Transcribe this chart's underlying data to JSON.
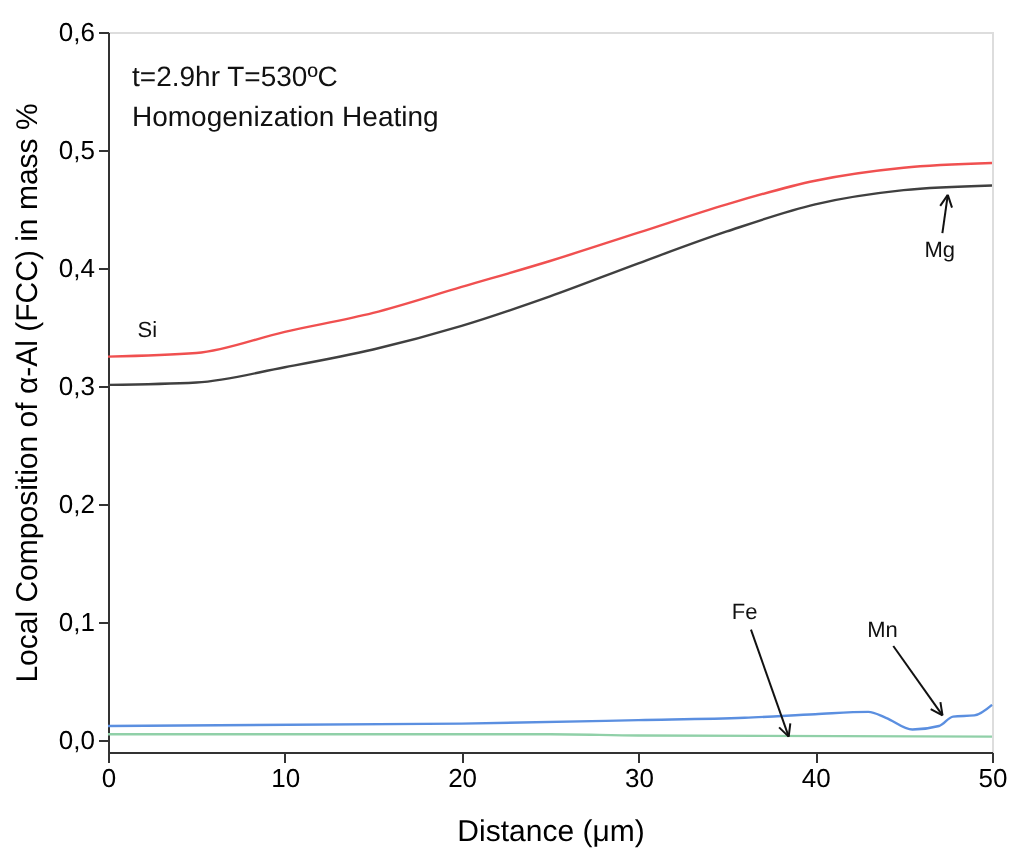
{
  "chart_data": {
    "type": "line",
    "xlabel": "Distance (μm)",
    "ylabel": "Local Composition of α-Al (FCC) in mass %",
    "xlim": [
      0,
      50
    ],
    "xticks": [
      0,
      10,
      20,
      30,
      40,
      50
    ],
    "ylim": [
      -0.01,
      0.6
    ],
    "yticks": [
      {
        "value": 0,
        "label": "0,0"
      },
      {
        "value": 0.1,
        "label": "0,1"
      },
      {
        "value": 0.2,
        "label": "0,2"
      },
      {
        "value": 0.3,
        "label": "0,3"
      },
      {
        "value": 0.4,
        "label": "0,4"
      },
      {
        "value": 0.5,
        "label": "0,5"
      },
      {
        "value": 0.6,
        "label": "0,6"
      }
    ],
    "grid": false,
    "legend": false,
    "line_style": "solid",
    "marker": "none",
    "series": [
      {
        "color": "#f05050",
        "x": [
          0,
          5,
          10,
          15,
          20,
          25,
          30,
          35,
          40,
          45,
          50
        ],
        "values": [
          0.325,
          0.328,
          0.346,
          0.362,
          0.384,
          0.406,
          0.43,
          0.454,
          0.474,
          0.485,
          0.489
        ]
      },
      {
        "color": "#404040",
        "x": [
          0,
          5,
          10,
          15,
          20,
          25,
          30,
          35,
          40,
          45,
          50
        ],
        "values": [
          0.301,
          0.303,
          0.316,
          0.331,
          0.351,
          0.376,
          0.404,
          0.431,
          0.454,
          0.466,
          0.47
        ]
      },
      {
        "color": "#5b8fe0",
        "x": [
          0,
          20,
          30,
          36,
          40,
          43,
          44,
          45.5,
          47,
          47.8,
          49,
          50
        ],
        "values": [
          0.012,
          0.014,
          0.017,
          0.019,
          0.022,
          0.024,
          0.019,
          0.009,
          0.012,
          0.02,
          0.021,
          0.03
        ]
      },
      {
        "color": "#90d0a8",
        "x": [
          0,
          25,
          30,
          50
        ],
        "values": [
          0.005,
          0.005,
          0.004,
          0.003
        ]
      }
    ],
    "annotations": [
      "t=2.9hr T=530ºC",
      "Homogenization Heating",
      {
        "text": "Si",
        "x": 2,
        "y": 0.33
      },
      {
        "text": "Mg",
        "x": 47.5,
        "y": 0.462
      },
      {
        "text": "Fe",
        "x": 38.5,
        "y": 0.003
      },
      {
        "text": "Mn",
        "x": 47.2,
        "y": 0.021
      }
    ]
  }
}
